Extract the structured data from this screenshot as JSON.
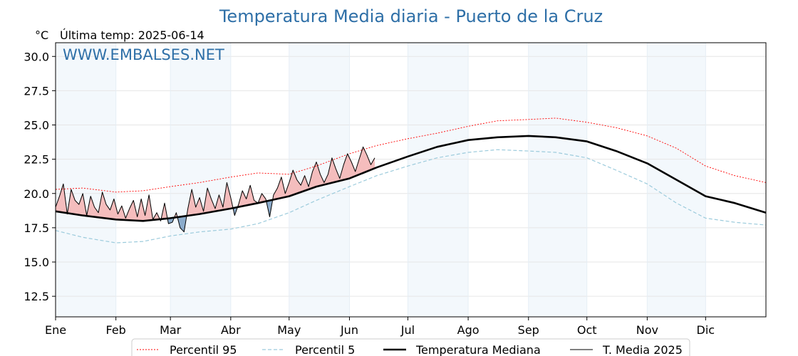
{
  "chart_data": {
    "type": "line",
    "title": "Temperatura Media diaria - Puerto de la Cruz",
    "unit_label": "°C",
    "last_temp_label": "Última temp: 2025-06-14",
    "watermark": "WWW.EMBALSES.NET",
    "ylim": [
      11,
      31
    ],
    "yticks": [
      "12.5",
      "15.0",
      "17.5",
      "20.0",
      "22.5",
      "25.0",
      "27.5",
      "30.0"
    ],
    "xlim": [
      1,
      366
    ],
    "months": [
      "Ene",
      "Feb",
      "Mar",
      "Abr",
      "May",
      "Jun",
      "Jul",
      "Ago",
      "Sep",
      "Oct",
      "Nov",
      "Dic"
    ],
    "month_start_days": [
      1,
      32,
      60,
      91,
      121,
      152,
      182,
      213,
      244,
      274,
      305,
      335
    ],
    "grid": true,
    "shaded_months": [
      "Ene",
      "Mar",
      "May",
      "Jul",
      "Sep",
      "Nov"
    ],
    "legend_position": "bottom-center",
    "series": [
      {
        "name": "Percentil 95",
        "style": "dotted",
        "color": "#ff0000",
        "x": [
          1,
          15,
          32,
          46,
          60,
          75,
          91,
          105,
          121,
          135,
          152,
          166,
          182,
          197,
          213,
          228,
          244,
          258,
          274,
          289,
          305,
          320,
          335,
          350,
          366
        ],
        "y": [
          20.3,
          20.4,
          20.1,
          20.2,
          20.5,
          20.8,
          21.2,
          21.5,
          21.4,
          22.0,
          22.9,
          23.5,
          24.0,
          24.4,
          24.9,
          25.3,
          25.4,
          25.5,
          25.2,
          24.8,
          24.2,
          23.3,
          22.0,
          21.3,
          20.8
        ]
      },
      {
        "name": "Percentil 5",
        "style": "dashed",
        "color": "#9ccbdc",
        "x": [
          1,
          15,
          32,
          46,
          60,
          75,
          91,
          105,
          121,
          135,
          152,
          166,
          182,
          197,
          213,
          228,
          244,
          258,
          274,
          289,
          305,
          320,
          335,
          350,
          366
        ],
        "y": [
          17.3,
          16.8,
          16.4,
          16.5,
          16.9,
          17.2,
          17.4,
          17.8,
          18.6,
          19.5,
          20.5,
          21.3,
          22.0,
          22.6,
          23.0,
          23.2,
          23.1,
          23.0,
          22.6,
          21.7,
          20.7,
          19.3,
          18.2,
          17.9,
          17.7
        ]
      },
      {
        "name": "Temperatura Mediana",
        "style": "solid-thick",
        "color": "#000000",
        "x": [
          1,
          15,
          32,
          46,
          60,
          75,
          91,
          105,
          121,
          135,
          152,
          166,
          182,
          197,
          213,
          228,
          244,
          258,
          274,
          289,
          305,
          320,
          335,
          350,
          366
        ],
        "y": [
          18.7,
          18.4,
          18.1,
          18.0,
          18.2,
          18.5,
          18.9,
          19.3,
          19.8,
          20.5,
          21.1,
          21.9,
          22.7,
          23.4,
          23.9,
          24.1,
          24.2,
          24.1,
          23.8,
          23.1,
          22.2,
          21.0,
          19.8,
          19.3,
          18.6
        ]
      },
      {
        "name": "T. Media 2025",
        "style": "solid-thin",
        "color": "#000000",
        "x": [
          1,
          3,
          5,
          7,
          9,
          11,
          13,
          15,
          17,
          19,
          21,
          23,
          25,
          27,
          29,
          31,
          33,
          35,
          37,
          39,
          41,
          43,
          45,
          47,
          49,
          51,
          53,
          55,
          57,
          59,
          61,
          63,
          65,
          67,
          69,
          71,
          73,
          75,
          77,
          79,
          81,
          83,
          85,
          87,
          89,
          91,
          93,
          95,
          97,
          99,
          101,
          103,
          105,
          107,
          109,
          111,
          113,
          115,
          117,
          119,
          121,
          123,
          125,
          127,
          129,
          131,
          133,
          135,
          137,
          139,
          141,
          143,
          145,
          147,
          149,
          151,
          153,
          155,
          157,
          159,
          161,
          163,
          165
        ],
        "y": [
          19.0,
          19.8,
          20.7,
          18.5,
          20.3,
          19.5,
          19.2,
          20.0,
          18.4,
          19.8,
          19.0,
          18.6,
          20.1,
          19.2,
          18.8,
          19.6,
          18.5,
          19.1,
          18.2,
          18.9,
          19.5,
          18.3,
          19.6,
          18.4,
          19.9,
          18.1,
          18.6,
          18.0,
          19.3,
          17.8,
          17.9,
          18.6,
          17.5,
          17.2,
          18.9,
          20.3,
          19.0,
          19.7,
          18.7,
          20.4,
          19.6,
          18.9,
          19.9,
          19.0,
          20.8,
          19.7,
          18.4,
          19.2,
          20.2,
          19.6,
          20.6,
          19.5,
          19.3,
          20.0,
          19.6,
          18.3,
          19.9,
          20.4,
          21.2,
          20.0,
          20.8,
          21.7,
          21.0,
          20.6,
          21.3,
          20.5,
          21.6,
          22.3,
          21.4,
          20.8,
          21.4,
          22.6,
          21.8,
          21.1,
          22.1,
          22.9,
          22.3,
          21.6,
          22.5,
          23.4,
          22.8,
          22.1,
          22.6
        ]
      }
    ]
  }
}
